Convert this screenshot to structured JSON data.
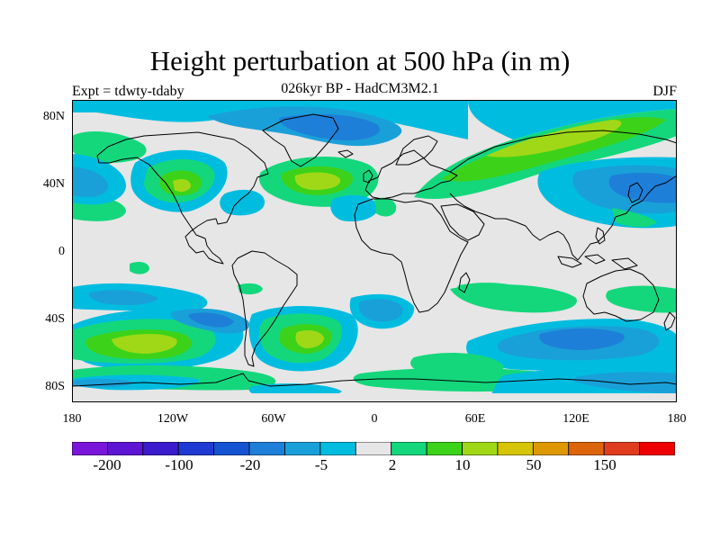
{
  "title": "Height perturbation at 500 hPa (in m)",
  "subtitle": "026kyr BP - HadCM3M2.1",
  "experiment": "Expt = tdwty-tdaby",
  "season": "DJF",
  "map": {
    "lat_ticks": [
      "80N",
      "40N",
      "0",
      "40S",
      "80S"
    ],
    "lon_ticks": [
      "180",
      "120W",
      "60W",
      "0",
      "60E",
      "120E",
      "180"
    ],
    "background_color": "#e6e6e6",
    "coastline_color": "#000000"
  },
  "colorbar": {
    "colors": [
      "#7a16d9",
      "#5d15d3",
      "#3a1ccd",
      "#1e3ad2",
      "#1454d2",
      "#1e7fd8",
      "#1aa0d8",
      "#00bde0",
      "#e6e6e6",
      "#14d77c",
      "#3cd21a",
      "#a0d817",
      "#d6c408",
      "#de9806",
      "#dc640a",
      "#e03c1e",
      "#ee0000"
    ],
    "labels": [
      "-200",
      "-100",
      "-20",
      "-5",
      "2",
      "10",
      "50",
      "150"
    ]
  }
}
